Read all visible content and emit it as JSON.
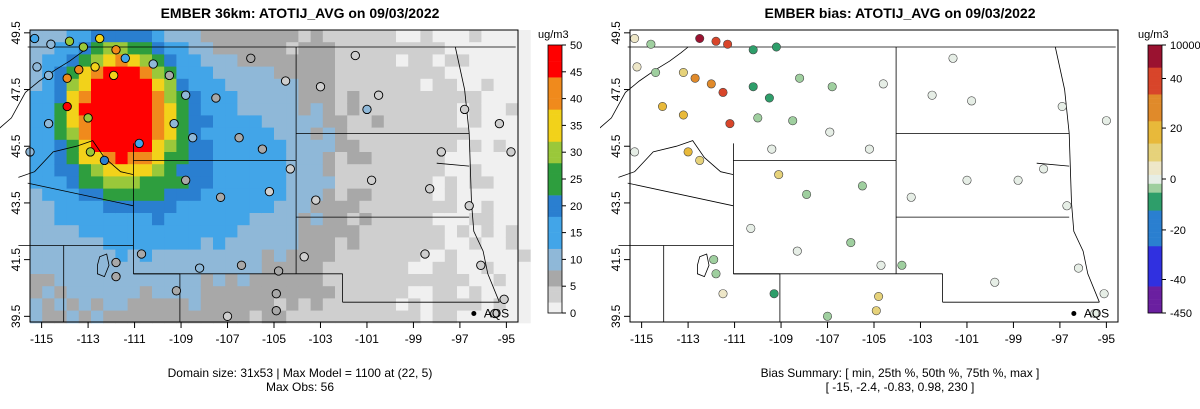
{
  "left": {
    "title": "EMBER 36km: ATOTIJ_AVG on 09/03/2022",
    "unit": "ug/m3",
    "x_ticks": [
      "-115",
      "-113",
      "-111",
      "-109",
      "-107",
      "-105",
      "-103",
      "-101",
      "-99",
      "-97",
      "-95"
    ],
    "y_ticks": [
      "39.5",
      "41.5",
      "43.5",
      "45.5",
      "47.5",
      "49.5"
    ],
    "colorbar_ticks": [
      "0",
      "5",
      "10",
      "15",
      "20",
      "25",
      "30",
      "35",
      "40",
      "45",
      "50"
    ],
    "colorbar_range": [
      0,
      50
    ],
    "site_label": "AQS",
    "caption_line1": "Domain size: 31x53 | Max Model = 1100 at (22, 5)",
    "caption_line2": "Max Obs: 56",
    "colors": {
      "low": "#d9d9d9",
      "mid": "#8c8c8c",
      "blue": "#42a5e8",
      "green": "#2e9e3e",
      "yellow": "#f2d21a",
      "orange": "#f08a1c",
      "red": "#ff0000"
    }
  },
  "right": {
    "title": "EMBER bias: ATOTIJ_AVG on 09/03/2022",
    "unit": "ug/m3",
    "x_ticks": [
      "-115",
      "-113",
      "-111",
      "-109",
      "-107",
      "-105",
      "-103",
      "-101",
      "-99",
      "-97",
      "-95"
    ],
    "y_ticks": [
      "39.5",
      "41.5",
      "43.5",
      "45.5",
      "47.5",
      "49.5"
    ],
    "colorbar_ticks": [
      "10000",
      "40",
      "20",
      "0",
      "-20",
      "-40",
      "-450"
    ],
    "site_label": "AQS",
    "caption_line1": "Bias Summary: [ min, 25th %, 50th %, 75th %, max ]",
    "caption_line2": "[ -15,   -2.4,   -0.83,   0.98,   230 ]",
    "colors": {
      "top": "#7a0e2e",
      "red": "#e03a2a",
      "orange": "#f08a1c",
      "yellow": "#f2d21a",
      "zero": "#f2f2f2",
      "green": "#3aa65a",
      "blue": "#2050e0",
      "purple": "#6a1fa0"
    }
  },
  "chart_data": [
    {
      "type": "heatmap",
      "title": "EMBER 36km: ATOTIJ_AVG on 09/03/2022",
      "xlim": [
        -115.5,
        -94.5
      ],
      "ylim": [
        39.3,
        49.6
      ],
      "x_ticks": [
        -115,
        -113,
        -111,
        -109,
        -107,
        -105,
        -103,
        -101,
        -99,
        -97,
        -95
      ],
      "y_ticks": [
        39.5,
        41.5,
        43.5,
        45.5,
        47.5,
        49.5
      ],
      "colorbar": {
        "label": "ug/m3",
        "range": [
          0,
          50
        ]
      },
      "max_model": 1100,
      "max_obs": 56,
      "obs_points": [
        {
          "lon": -115.3,
          "lat": 49.3,
          "v": 12
        },
        {
          "lon": -114.6,
          "lat": 49.1,
          "v": 8
        },
        {
          "lon": -113.8,
          "lat": 49.2,
          "v": 30
        },
        {
          "lon": -113.2,
          "lat": 49.0,
          "v": 28
        },
        {
          "lon": -112.5,
          "lat": 49.3,
          "v": 35
        },
        {
          "lon": -111.8,
          "lat": 48.9,
          "v": 40
        },
        {
          "lon": -115.2,
          "lat": 48.3,
          "v": 10
        },
        {
          "lon": -114.7,
          "lat": 48.0,
          "v": 9
        },
        {
          "lon": -113.9,
          "lat": 47.9,
          "v": 42
        },
        {
          "lon": -113.4,
          "lat": 48.2,
          "v": 38
        },
        {
          "lon": -112.7,
          "lat": 48.3,
          "v": 33
        },
        {
          "lon": -111.9,
          "lat": 48.0,
          "v": 36
        },
        {
          "lon": -111.4,
          "lat": 48.6,
          "v": 12
        },
        {
          "lon": -110.2,
          "lat": 48.4,
          "v": 9
        },
        {
          "lon": -109.5,
          "lat": 48.0,
          "v": 7
        },
        {
          "lon": -108.8,
          "lat": 47.3,
          "v": 8
        },
        {
          "lon": -107.5,
          "lat": 47.2,
          "v": 6
        },
        {
          "lon": -106.0,
          "lat": 48.6,
          "v": 5
        },
        {
          "lon": -104.5,
          "lat": 47.8,
          "v": 4
        },
        {
          "lon": -103.0,
          "lat": 47.6,
          "v": 3
        },
        {
          "lon": -101.5,
          "lat": 48.7,
          "v": 2
        },
        {
          "lon": -100.5,
          "lat": 47.3,
          "v": 3
        },
        {
          "lon": -101.0,
          "lat": 46.8,
          "v": 9
        },
        {
          "lon": -96.8,
          "lat": 46.8,
          "v": 4
        },
        {
          "lon": -95.3,
          "lat": 46.3,
          "v": 3
        },
        {
          "lon": -94.8,
          "lat": 45.3,
          "v": 4
        },
        {
          "lon": -97.8,
          "lat": 45.3,
          "v": 3
        },
        {
          "lon": -113.9,
          "lat": 46.9,
          "v": 45
        },
        {
          "lon": -113.0,
          "lat": 46.5,
          "v": 30
        },
        {
          "lon": -114.7,
          "lat": 46.3,
          "v": 10
        },
        {
          "lon": -115.5,
          "lat": 45.3,
          "v": 11
        },
        {
          "lon": -112.9,
          "lat": 45.3,
          "v": 28
        },
        {
          "lon": -112.3,
          "lat": 45.0,
          "v": 20
        },
        {
          "lon": -110.8,
          "lat": 45.6,
          "v": 14
        },
        {
          "lon": -109.3,
          "lat": 46.3,
          "v": 10
        },
        {
          "lon": -108.5,
          "lat": 45.8,
          "v": 8
        },
        {
          "lon": -106.5,
          "lat": 45.8,
          "v": 6
        },
        {
          "lon": -105.5,
          "lat": 45.4,
          "v": 5
        },
        {
          "lon": -104.3,
          "lat": 44.7,
          "v": 4
        },
        {
          "lon": -108.8,
          "lat": 44.3,
          "v": 6
        },
        {
          "lon": -107.3,
          "lat": 43.7,
          "v": 5
        },
        {
          "lon": -105.2,
          "lat": 43.9,
          "v": 4
        },
        {
          "lon": -103.2,
          "lat": 43.6,
          "v": 3
        },
        {
          "lon": -100.8,
          "lat": 44.3,
          "v": 2
        },
        {
          "lon": -98.3,
          "lat": 44.0,
          "v": 3
        },
        {
          "lon": -96.6,
          "lat": 43.4,
          "v": 2
        },
        {
          "lon": -111.8,
          "lat": 41.4,
          "v": 7
        },
        {
          "lon": -111.8,
          "lat": 40.9,
          "v": 6
        },
        {
          "lon": -110.7,
          "lat": 41.7,
          "v": 5
        },
        {
          "lon": -108.2,
          "lat": 41.2,
          "v": 9
        },
        {
          "lon": -106.4,
          "lat": 41.3,
          "v": 5
        },
        {
          "lon": -104.8,
          "lat": 41.1,
          "v": 6
        },
        {
          "lon": -103.7,
          "lat": 41.6,
          "v": 4
        },
        {
          "lon": -104.9,
          "lat": 40.3,
          "v": 6
        },
        {
          "lon": -104.9,
          "lat": 39.7,
          "v": 7
        },
        {
          "lon": -107.0,
          "lat": 39.5,
          "v": 4
        },
        {
          "lon": -109.2,
          "lat": 40.4,
          "v": 5
        },
        {
          "lon": -98.5,
          "lat": 41.7,
          "v": 3
        },
        {
          "lon": -96.1,
          "lat": 41.3,
          "v": 4
        },
        {
          "lon": -95.1,
          "lat": 40.1,
          "v": 3
        },
        {
          "lon": -95.5,
          "lat": 39.6,
          "v": 2
        }
      ],
      "aqs_marker": {
        "lon": -96.4,
        "lat": 39.6
      }
    },
    {
      "type": "scatter",
      "title": "EMBER bias: ATOTIJ_AVG on 09/03/2022",
      "xlim": [
        -115.5,
        -94.5
      ],
      "ylim": [
        39.3,
        49.6
      ],
      "x_ticks": [
        -115,
        -113,
        -111,
        -109,
        -107,
        -105,
        -103,
        -101,
        -99,
        -97,
        -95
      ],
      "y_ticks": [
        39.5,
        41.5,
        43.5,
        45.5,
        47.5,
        49.5
      ],
      "colorbar": {
        "label": "ug/m3",
        "ticks": [
          10000,
          40,
          20,
          0,
          -20,
          -40,
          -450
        ]
      },
      "bias_summary": {
        "min": -15,
        "p25": -2.4,
        "p50": -0.83,
        "p75": 0.98,
        "max": 230
      },
      "bias_points": [
        {
          "lon": -115.3,
          "lat": 49.3,
          "v": 2
        },
        {
          "lon": -114.6,
          "lat": 49.1,
          "v": -2
        },
        {
          "lon": -112.5,
          "lat": 49.3,
          "v": 45
        },
        {
          "lon": -111.8,
          "lat": 49.2,
          "v": 40
        },
        {
          "lon": -111.3,
          "lat": 49.1,
          "v": 38
        },
        {
          "lon": -110.2,
          "lat": 48.9,
          "v": -8
        },
        {
          "lon": -109.2,
          "lat": 49.0,
          "v": -10
        },
        {
          "lon": -115.2,
          "lat": 48.3,
          "v": 3
        },
        {
          "lon": -114.4,
          "lat": 48.1,
          "v": -3
        },
        {
          "lon": -113.2,
          "lat": 48.1,
          "v": 8
        },
        {
          "lon": -112.7,
          "lat": 47.9,
          "v": 25
        },
        {
          "lon": -112.0,
          "lat": 47.7,
          "v": 30
        },
        {
          "lon": -111.5,
          "lat": 47.4,
          "v": 35
        },
        {
          "lon": -110.2,
          "lat": 47.6,
          "v": -6
        },
        {
          "lon": -109.5,
          "lat": 47.2,
          "v": -12
        },
        {
          "lon": -108.2,
          "lat": 47.9,
          "v": -5
        },
        {
          "lon": -106.8,
          "lat": 47.6,
          "v": -2
        },
        {
          "lon": -104.6,
          "lat": 47.7,
          "v": -1
        },
        {
          "lon": -102.5,
          "lat": 47.3,
          "v": 0
        },
        {
          "lon": -101.6,
          "lat": 48.6,
          "v": 0
        },
        {
          "lon": -100.8,
          "lat": 47.1,
          "v": 1
        },
        {
          "lon": -96.9,
          "lat": 46.9,
          "v": 0
        },
        {
          "lon": -95.0,
          "lat": 46.4,
          "v": -1
        },
        {
          "lon": -114.1,
          "lat": 46.9,
          "v": 20
        },
        {
          "lon": -113.2,
          "lat": 46.6,
          "v": 18
        },
        {
          "lon": -111.2,
          "lat": 46.3,
          "v": 35
        },
        {
          "lon": -110.0,
          "lat": 46.5,
          "v": -3
        },
        {
          "lon": -108.5,
          "lat": 46.4,
          "v": -2
        },
        {
          "lon": -106.9,
          "lat": 46.0,
          "v": 0
        },
        {
          "lon": -105.2,
          "lat": 45.4,
          "v": -1
        },
        {
          "lon": -115.3,
          "lat": 45.3,
          "v": 0
        },
        {
          "lon": -113.0,
          "lat": 45.3,
          "v": 15
        },
        {
          "lon": -112.5,
          "lat": 45.0,
          "v": 12
        },
        {
          "lon": -109.4,
          "lat": 45.4,
          "v": -1
        },
        {
          "lon": -109.1,
          "lat": 44.5,
          "v": 10
        },
        {
          "lon": -107.9,
          "lat": 43.8,
          "v": -4
        },
        {
          "lon": -105.5,
          "lat": 44.1,
          "v": -2
        },
        {
          "lon": -103.4,
          "lat": 43.7,
          "v": -1
        },
        {
          "lon": -101.0,
          "lat": 44.3,
          "v": 0
        },
        {
          "lon": -98.8,
          "lat": 44.3,
          "v": 0
        },
        {
          "lon": -97.7,
          "lat": 44.7,
          "v": -1
        },
        {
          "lon": -96.7,
          "lat": 43.4,
          "v": 0
        },
        {
          "lon": -111.9,
          "lat": 41.5,
          "v": -3
        },
        {
          "lon": -111.8,
          "lat": 41.0,
          "v": -2
        },
        {
          "lon": -111.5,
          "lat": 40.3,
          "v": 5
        },
        {
          "lon": -110.3,
          "lat": 42.6,
          "v": -1
        },
        {
          "lon": -108.3,
          "lat": 41.8,
          "v": 0
        },
        {
          "lon": -106.0,
          "lat": 42.1,
          "v": -2
        },
        {
          "lon": -104.7,
          "lat": 41.3,
          "v": -1
        },
        {
          "lon": -103.8,
          "lat": 41.3,
          "v": -2
        },
        {
          "lon": -104.8,
          "lat": 40.2,
          "v": 12
        },
        {
          "lon": -104.9,
          "lat": 39.7,
          "v": 8
        },
        {
          "lon": -107.0,
          "lat": 39.5,
          "v": -5
        },
        {
          "lon": -109.3,
          "lat": 40.3,
          "v": -8
        },
        {
          "lon": -99.8,
          "lat": 40.7,
          "v": 0
        },
        {
          "lon": -96.2,
          "lat": 41.2,
          "v": 0
        },
        {
          "lon": -95.1,
          "lat": 40.3,
          "v": -1
        },
        {
          "lon": -95.5,
          "lat": 39.6,
          "v": 0
        }
      ],
      "aqs_marker": {
        "lon": -96.4,
        "lat": 39.6
      }
    }
  ]
}
